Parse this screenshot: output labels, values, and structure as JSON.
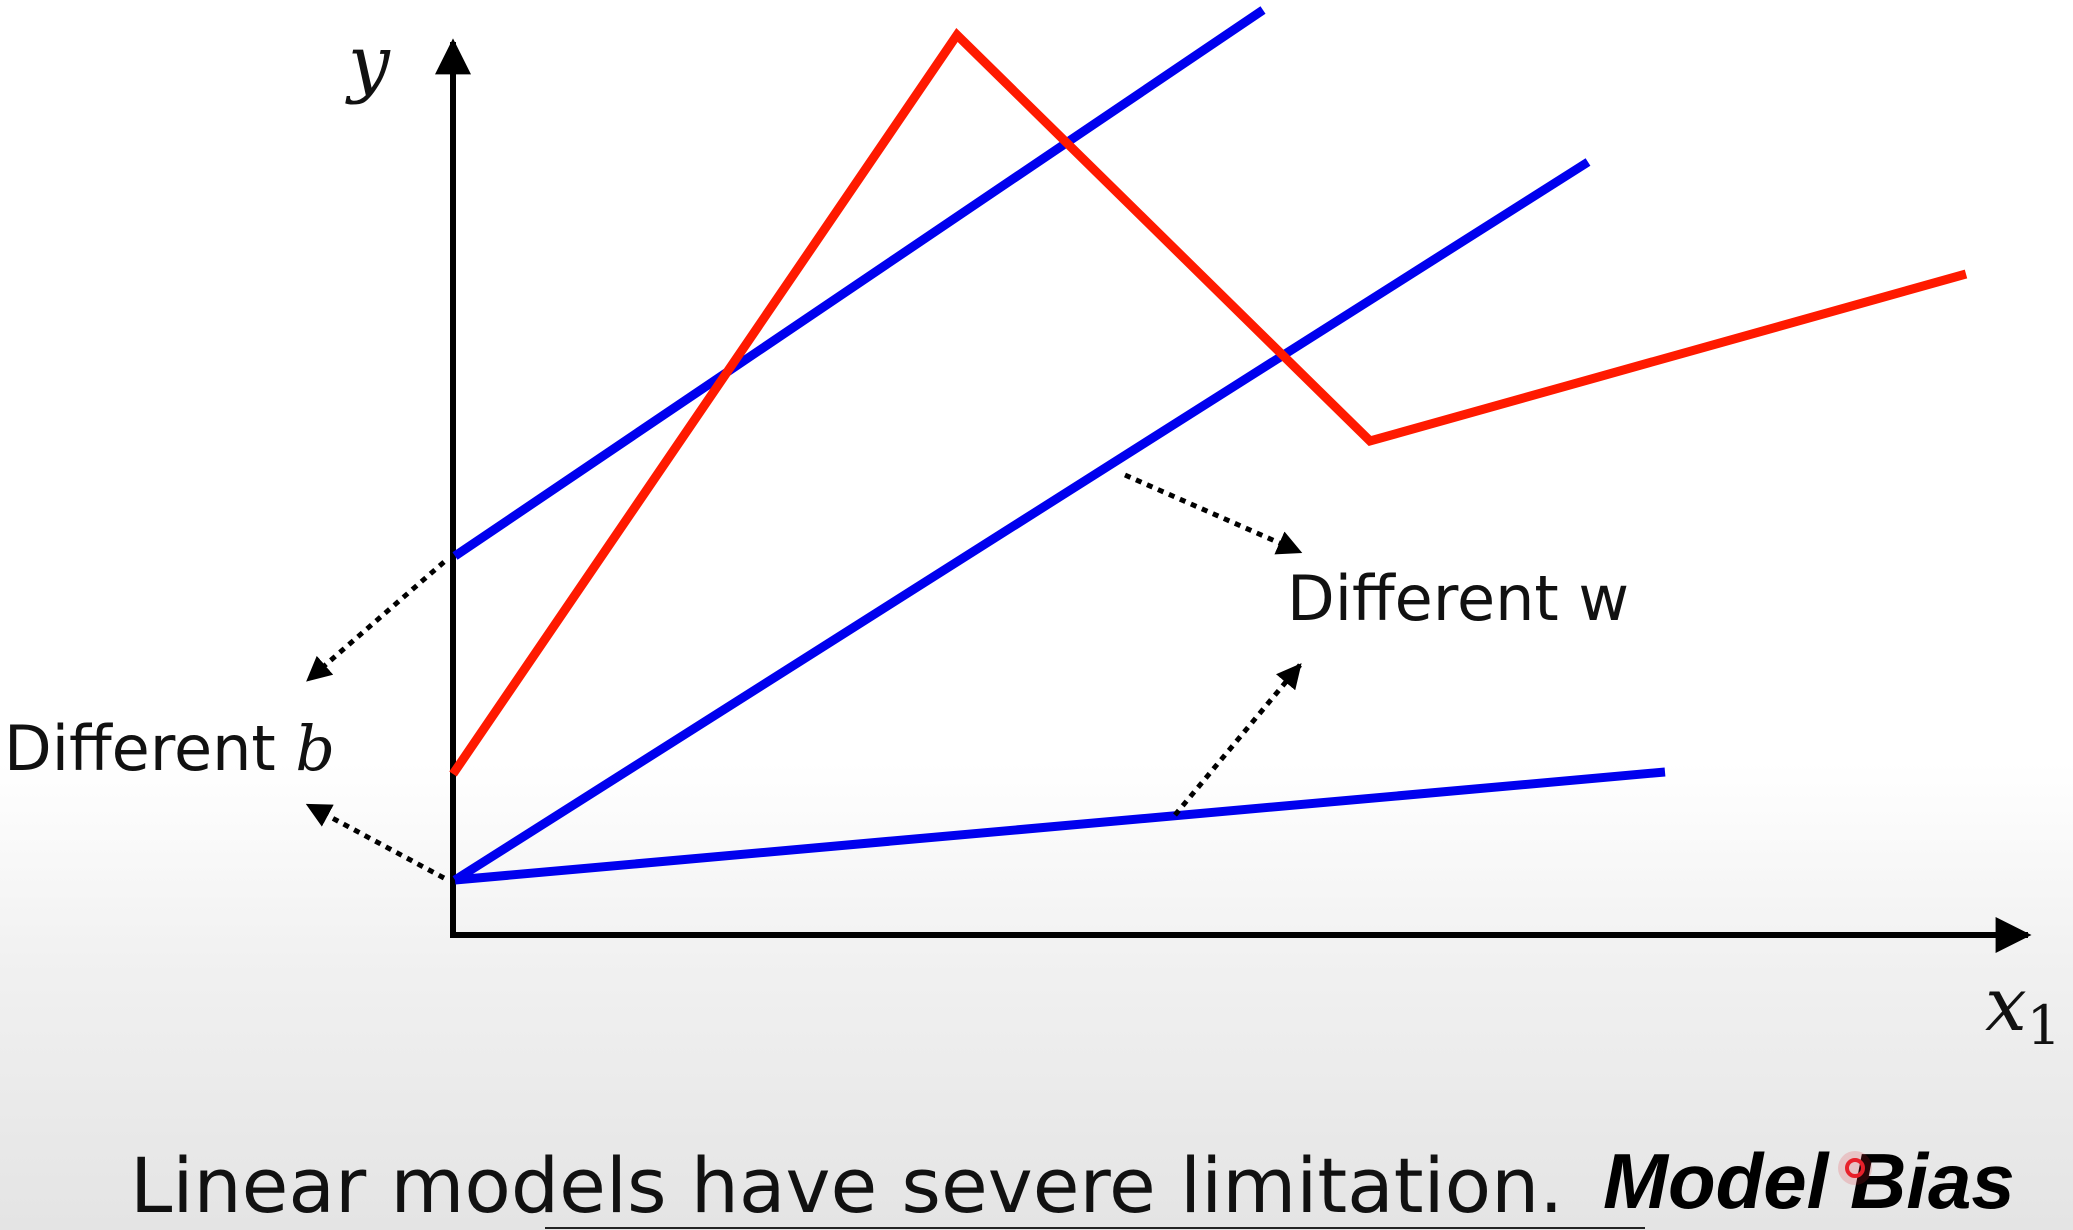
{
  "axes": {
    "y_label": "y",
    "x_label": "x",
    "x_subscript": "1"
  },
  "annotations": {
    "different_w": "Different w",
    "different_b_text": "Different ",
    "different_b_symbol": "b"
  },
  "caption": {
    "text": "Linear models have severe limitation.",
    "brand": "Model Bias"
  },
  "colors": {
    "linear_lines": "#0000ee",
    "piecewise_line": "#ff1a00",
    "axes": "#000000",
    "brand_dot": "#e8202a"
  },
  "icons": {
    "cursor": "red-dot-cursor-icon"
  }
}
